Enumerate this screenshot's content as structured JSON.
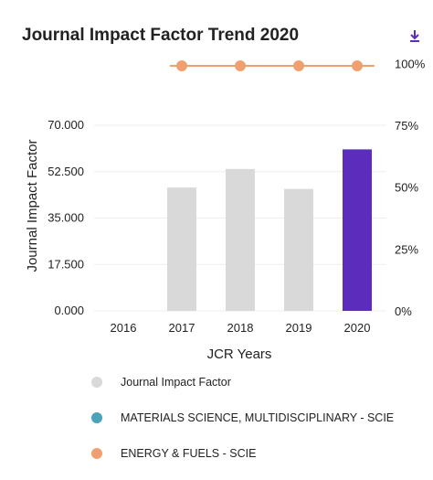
{
  "header": {
    "title": "Journal Impact Factor Trend 2020",
    "download_icon": "download-icon"
  },
  "colors": {
    "bar_default": "#d9d9d9",
    "bar_highlight": "#5c2dbd",
    "line_energy": "#f0a070",
    "line_materials": "#4aa3b8",
    "grid": "#eeeeee"
  },
  "chart_data": {
    "type": "bar",
    "title": "Journal Impact Factor Trend 2020",
    "xlabel": "JCR Years",
    "ylabel": "Journal Impact Factor",
    "categories": [
      "2016",
      "2017",
      "2018",
      "2019",
      "2020"
    ],
    "ylim": [
      0,
      70
    ],
    "y_ticks": [
      "0.000",
      "17.500",
      "35.000",
      "52.500",
      "70.000"
    ],
    "y2lim": [
      0,
      100
    ],
    "y2_ticks": [
      "0%",
      "25%",
      "50%",
      "75%",
      "100%"
    ],
    "grid": true,
    "legend_position": "bottom",
    "series": [
      {
        "name": "Journal Impact Factor",
        "kind": "bar",
        "axis": "left",
        "values": [
          null,
          46.5,
          53.5,
          46.0,
          60.9
        ],
        "highlight_index": 4
      },
      {
        "name": "MATERIALS SCIENCE, MULTIDISCIPLINARY - SCIE",
        "kind": "line",
        "axis": "right",
        "values": [
          null,
          null,
          null,
          null,
          null
        ]
      },
      {
        "name": "ENERGY & FUELS - SCIE",
        "kind": "line",
        "axis": "right",
        "values": [
          null,
          99,
          99,
          99,
          99
        ]
      }
    ]
  }
}
